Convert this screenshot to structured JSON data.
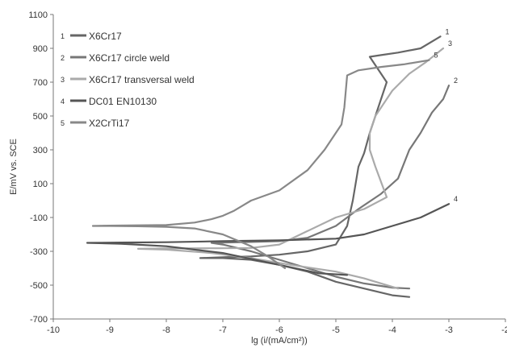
{
  "chart_data": {
    "type": "line",
    "xlabel": "lg (i/(mA/cm²))",
    "ylabel": "E/mV vs. SCE",
    "xlim": [
      -10,
      -2
    ],
    "ylim": [
      -700,
      1100
    ],
    "x_ticks": [
      "-10",
      "-9",
      "-8",
      "-7",
      "-6",
      "-5",
      "-4",
      "-3",
      "-2"
    ],
    "y_ticks": [
      "-700",
      "-500",
      "-300",
      "-100",
      "100",
      "300",
      "500",
      "700",
      "900",
      "1100"
    ],
    "legend_position": "top-left",
    "grid": false,
    "series": [
      {
        "id": "1",
        "name": "X6Cr17",
        "color": "#666666",
        "curve_label": "1",
        "x": [
          -3.7,
          -4.0,
          -4.5,
          -5.0,
          -5.5,
          -6.0,
          -6.5,
          -7.0,
          -7.4,
          -7.0,
          -6.5,
          -6.0,
          -5.5,
          -5.0,
          -4.8,
          -4.7,
          -4.6,
          -4.5,
          -4.4,
          -4.2,
          -4.1,
          -4.3,
          -4.4,
          -4.2,
          -3.9,
          -3.5,
          -3.15
        ],
        "y": [
          -570,
          -560,
          -520,
          -480,
          -420,
          -380,
          -350,
          -340,
          -340,
          -335,
          -330,
          -320,
          -300,
          -260,
          -150,
          0,
          200,
          280,
          400,
          600,
          700,
          800,
          850,
          860,
          875,
          900,
          970
        ]
      },
      {
        "id": "2",
        "name": "X6Cr17 circle weld",
        "color": "#777777",
        "curve_label": "2",
        "x": [
          -3.7,
          -4.0,
          -4.5,
          -5.0,
          -5.5,
          -6.0,
          -6.5,
          -7.0,
          -7.2,
          -7.0,
          -6.5,
          -6.0,
          -5.5,
          -5.0,
          -4.6,
          -4.2,
          -3.9,
          -3.7,
          -3.6,
          -3.5,
          -3.3,
          -3.1,
          -3.0
        ],
        "y": [
          -520,
          -515,
          -490,
          -450,
          -400,
          -350,
          -300,
          -260,
          -250,
          -248,
          -245,
          -240,
          -220,
          -150,
          -50,
          40,
          130,
          300,
          350,
          400,
          520,
          600,
          680
        ]
      },
      {
        "id": "3",
        "name": "X6Cr17 transversal weld",
        "color": "#aaaaaa",
        "curve_label": "3",
        "x": [
          -3.9,
          -4.5,
          -5.0,
          -5.8,
          -6.5,
          -7.2,
          -8.0,
          -8.5,
          -8.0,
          -7.0,
          -6.5,
          -6.0,
          -5.5,
          -5.0,
          -4.5,
          -4.1,
          -4.3,
          -4.4,
          -4.4,
          -4.3,
          -4.0,
          -3.7,
          -3.4,
          -3.1
        ],
        "y": [
          -520,
          -460,
          -420,
          -380,
          -340,
          -310,
          -290,
          -285,
          -283,
          -282,
          -280,
          -260,
          -180,
          -100,
          -50,
          20,
          200,
          300,
          400,
          500,
          650,
          750,
          820,
          900
        ]
      },
      {
        "id": "4",
        "name": "DC01 EN10130",
        "color": "#555555",
        "curve_label": "4",
        "x": [
          -4.8,
          -5.3,
          -6.0,
          -7.0,
          -8.0,
          -8.8,
          -9.4,
          -8.8,
          -8.0,
          -7.0,
          -6.0,
          -5.0,
          -4.5,
          -4.0,
          -3.5,
          -3.0
        ],
        "y": [
          -440,
          -430,
          -380,
          -310,
          -270,
          -255,
          -250,
          -248,
          -246,
          -240,
          -235,
          -225,
          -200,
          -150,
          -100,
          -20
        ]
      },
      {
        "id": "5",
        "name": "X2CrTi17",
        "color": "#888888",
        "curve_label": "5",
        "x": [
          -5.9,
          -6.2,
          -6.5,
          -7.0,
          -7.5,
          -8.0,
          -8.5,
          -9.0,
          -9.3,
          -9.0,
          -8.0,
          -7.5,
          -7.2,
          -7.0,
          -6.8,
          -6.5,
          -6.0,
          -5.5,
          -5.2,
          -5.0,
          -4.9,
          -4.85,
          -4.8,
          -4.6,
          -4.2,
          -3.8,
          -3.35
        ],
        "y": [
          -400,
          -330,
          -270,
          -200,
          -165,
          -155,
          -152,
          -150,
          -150,
          -148,
          -145,
          -130,
          -110,
          -90,
          -60,
          0,
          60,
          180,
          300,
          400,
          450,
          550,
          740,
          770,
          790,
          805,
          830
        ]
      }
    ]
  }
}
